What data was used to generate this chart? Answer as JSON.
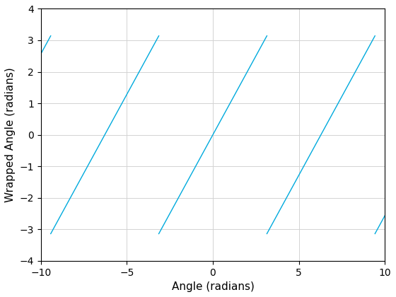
{
  "xlabel": "Angle (radians)",
  "ylabel": "Wrapped Angle (radians)",
  "xlim": [
    -10,
    10
  ],
  "ylim": [
    -4,
    4
  ],
  "xticks": [
    -10,
    -5,
    0,
    5,
    10
  ],
  "yticks": [
    -4,
    -3,
    -2,
    -1,
    0,
    1,
    2,
    3,
    4
  ],
  "ytick_labels": [
    "-4",
    "-3",
    "-2",
    "-1",
    "0",
    "1",
    "2",
    "3",
    "4"
  ],
  "line_color": "#00AADD",
  "line_width": 1.0,
  "grid_color": "#D3D3D3",
  "background_color": "#FFFFFF",
  "x_start": -10,
  "x_end": 10,
  "num_points": 10000,
  "fig_width": 5.6,
  "fig_height": 4.2,
  "dpi": 100
}
